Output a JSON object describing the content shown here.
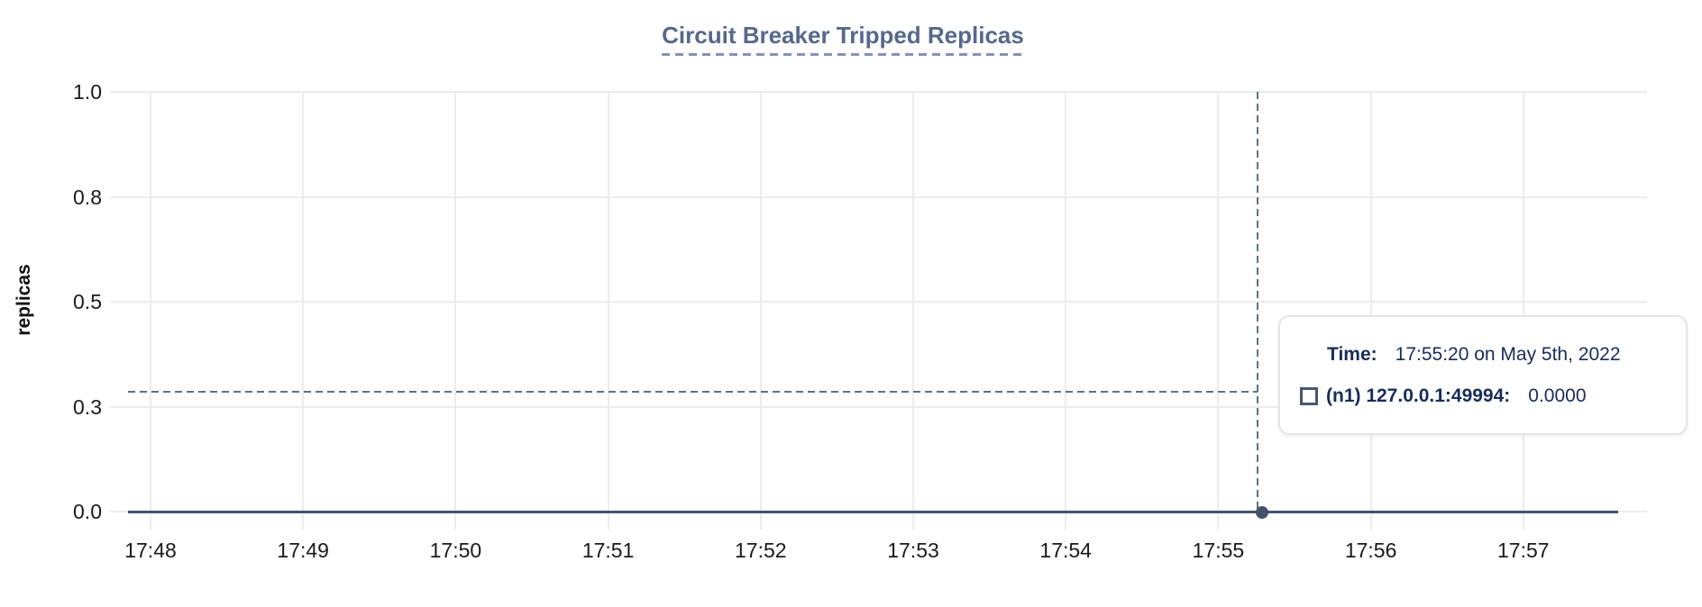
{
  "chart_data": {
    "type": "line",
    "title": "Circuit Breaker Tripped Replicas",
    "xlabel": "",
    "ylabel": "replicas",
    "x_ticks": [
      "17:48",
      "17:49",
      "17:50",
      "17:51",
      "17:52",
      "17:53",
      "17:54",
      "17:55",
      "17:56",
      "17:57"
    ],
    "y_ticks": [
      "1.0",
      "0.8",
      "0.5",
      "0.3",
      "0.0"
    ],
    "ylim": [
      0.0,
      1.0
    ],
    "grid": true,
    "legend_position": "none",
    "series": [
      {
        "name": "(n1) 127.0.0.1:49994",
        "y_constant": 0.0,
        "x_start": "17:47:50",
        "x_end": "17:57:40",
        "x": [
          "17:48",
          "17:49",
          "17:50",
          "17:51",
          "17:52",
          "17:53",
          "17:54",
          "17:55",
          "17:56",
          "17:57"
        ],
        "values": [
          0,
          0,
          0,
          0,
          0,
          0,
          0,
          0,
          0,
          0
        ]
      }
    ],
    "hover_point": {
      "time": "17:55:20",
      "value": 0.0
    }
  },
  "tooltip": {
    "time_label": "Time:",
    "time_value": "17:55:20 on May 5th, 2022",
    "series_label": "(n1) 127.0.0.1:49994:",
    "series_value": "0.0000"
  },
  "colors": {
    "title": "#56698c",
    "title_underline": "#8393b6",
    "gridline": "#ececec",
    "axis_text": "#1a1a1a",
    "series_line": "#44536c",
    "hover_dot": "#44536c",
    "crosshair": "#5d7383",
    "tooltip_text": "#192c5a",
    "tooltip_border": "#e4e4e8",
    "swatch_border": "#47566f",
    "background": "#ffffff"
  }
}
